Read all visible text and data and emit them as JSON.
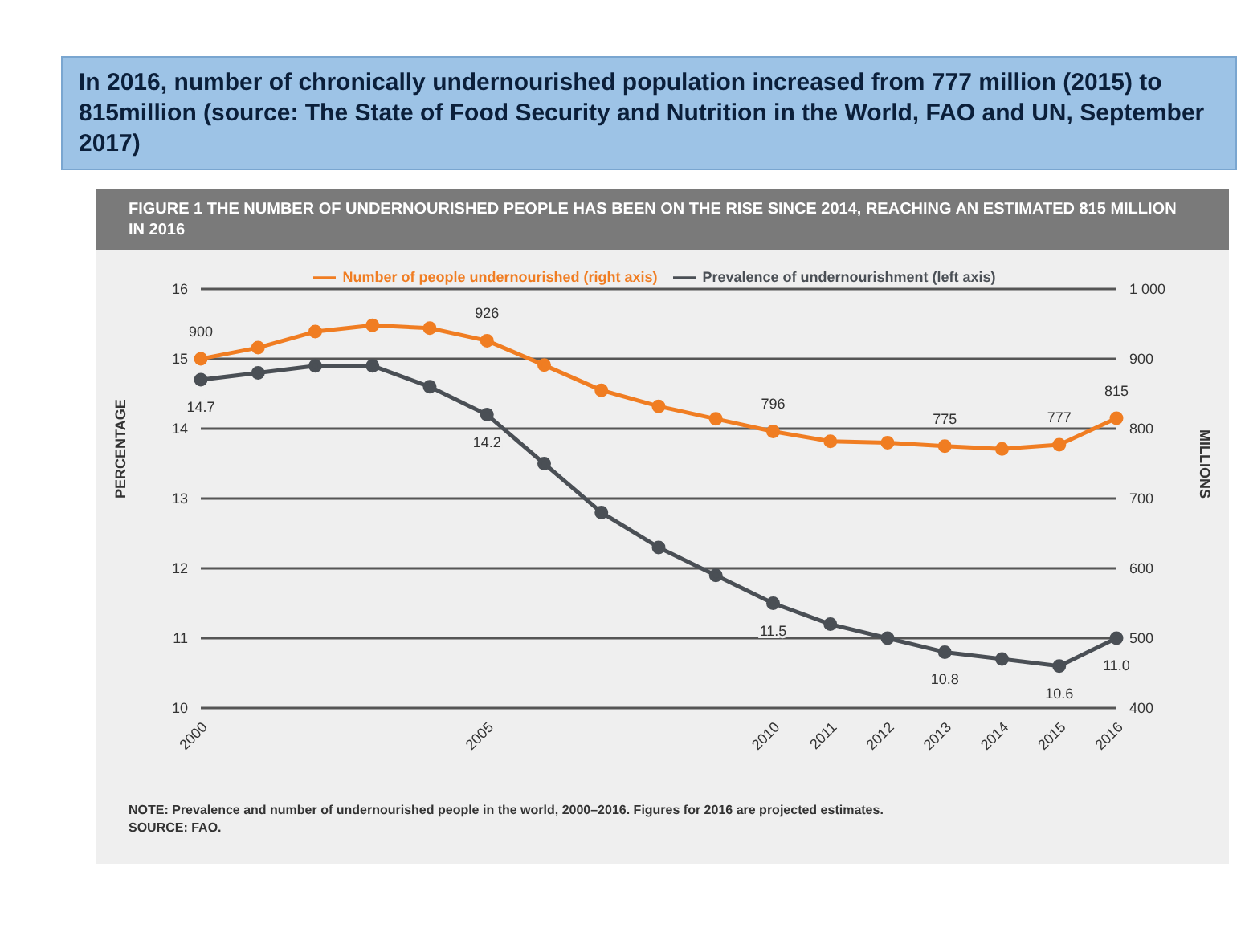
{
  "chart_data": {
    "type": "line",
    "title": "In 2016, number of chronically undernourished population  increased from 777 million (2015)  to 815million (source: The State of Food Security and Nutrition in the World,  FAO and UN, September 2017)",
    "subtitle": "FIGURE 1 THE NUMBER OF UNDERNOURISHED PEOPLE HAS BEEN ON THE RISE SINCE 2014, REACHING AN ESTIMATED 815 MILLION IN 2016",
    "ylabel": "PERCENTAGE",
    "y2label": "MILLIONS",
    "categories": [
      "2000",
      null,
      null,
      null,
      null,
      "2005",
      null,
      null,
      null,
      null,
      "2010",
      "2011",
      "2012",
      "2013",
      "2014",
      "2015",
      "2016"
    ],
    "series": [
      {
        "name": "Prevalence of undernourishment (left axis)",
        "color": "#4a4f55",
        "values": [
          14.7,
          14.8,
          14.9,
          14.9,
          14.6,
          14.2,
          13.5,
          12.8,
          12.3,
          11.9,
          11.5,
          11.2,
          11.0,
          10.8,
          10.7,
          10.6,
          11.0
        ],
        "value_labels": [
          "14.7",
          null,
          null,
          null,
          null,
          "14.2",
          null,
          null,
          null,
          null,
          "11.5",
          null,
          null,
          "10.8",
          null,
          "10.6",
          "11.0"
        ]
      },
      {
        "name": "Number of people undernourished (right axis)",
        "color": "#f07d22",
        "axis": "y2",
        "values": [
          900,
          916,
          939,
          948,
          944,
          926,
          891,
          855,
          832,
          814,
          796,
          782,
          780,
          775,
          771,
          777,
          815
        ],
        "value_labels": [
          "900",
          null,
          null,
          null,
          null,
          "926",
          null,
          null,
          null,
          null,
          "796",
          null,
          null,
          "775",
          null,
          "777",
          "815"
        ]
      }
    ],
    "ylim": [
      10,
      16
    ],
    "yticks": [
      10,
      11,
      12,
      13,
      14,
      15,
      16
    ],
    "y2lim": [
      400,
      1000
    ],
    "y2ticks": [
      400,
      500,
      600,
      700,
      800,
      900,
      {
        "value": 1000,
        "label": "1 000"
      }
    ],
    "grid": "y",
    "legend": "top",
    "marker": "circle",
    "line_style": "solid",
    "annotations": [
      "NOTE: Prevalence and number of undernourished people in the world, 2000–2016. Figures for 2016 are projected estimates.",
      "SOURCE: FAO."
    ]
  }
}
